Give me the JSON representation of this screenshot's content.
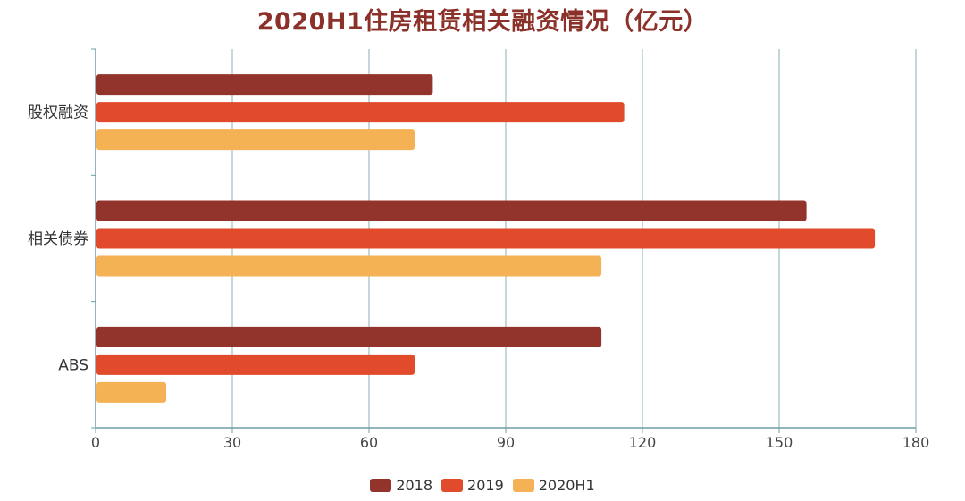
{
  "chart_data": {
    "type": "bar",
    "orientation": "horizontal",
    "title": "2020H1住房租赁相关融资情况（亿元）",
    "categories": [
      "股权融资",
      "相关债券",
      "ABS"
    ],
    "series": [
      {
        "name": "2018",
        "color": "#93342c",
        "values": [
          74,
          156,
          111
        ]
      },
      {
        "name": "2019",
        "color": "#e14a2a",
        "values": [
          116,
          171,
          70
        ]
      },
      {
        "name": "2020H1",
        "color": "#f4b255",
        "values": [
          70,
          111,
          15.5
        ]
      }
    ],
    "x_ticks": [
      0,
      30,
      60,
      90,
      120,
      150,
      180
    ],
    "xlim": [
      0,
      180
    ],
    "grid": true,
    "legend_position": "bottom-center"
  }
}
